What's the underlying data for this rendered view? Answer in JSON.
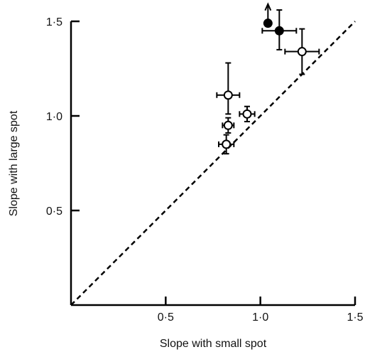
{
  "chart_data": {
    "type": "scatter",
    "xlabel": "Slope with small spot",
    "ylabel": "Slope with large spot",
    "xlim": [
      0,
      1.5
    ],
    "ylim": [
      0,
      1.5
    ],
    "x_ticks": [
      {
        "value": 0.5,
        "label": "0·5"
      },
      {
        "value": 1.0,
        "label": "1·0"
      },
      {
        "value": 1.5,
        "label": "1·5"
      }
    ],
    "y_ticks": [
      {
        "value": 0.5,
        "label": "0·5"
      },
      {
        "value": 1.0,
        "label": "1·0"
      },
      {
        "value": 1.5,
        "label": "1·5"
      }
    ],
    "reference_line": {
      "style": "dashed",
      "from": [
        0,
        0
      ],
      "to": [
        1.5,
        1.5
      ]
    },
    "grid": false,
    "points": [
      {
        "x": 1.04,
        "y": 1.49,
        "marker": "filled",
        "arrow_up": true
      },
      {
        "x": 1.1,
        "y": 1.45,
        "marker": "filled",
        "xerr": [
          0.09,
          0.09
        ],
        "yerr": [
          0.1,
          0.11
        ]
      },
      {
        "x": 1.22,
        "y": 1.34,
        "marker": "open",
        "xerr": [
          0.09,
          0.09
        ],
        "yerr": [
          0.12,
          0.12
        ]
      },
      {
        "x": 0.83,
        "y": 1.11,
        "marker": "crossed",
        "xerr": [
          0.06,
          0.06
        ],
        "yerr": [
          0.1,
          0.17
        ]
      },
      {
        "x": 0.93,
        "y": 1.01,
        "marker": "crossed",
        "xerr": [
          0.04,
          0.04
        ],
        "yerr": [
          0.04,
          0.04
        ]
      },
      {
        "x": 0.83,
        "y": 0.95,
        "marker": "open",
        "xerr": [
          0.03,
          0.03
        ],
        "yerr": [
          0.04,
          0.04
        ]
      },
      {
        "x": 0.82,
        "y": 0.85,
        "marker": "open",
        "xerr": [
          0.04,
          0.04
        ],
        "yerr": [
          0.05,
          0.05
        ]
      }
    ]
  }
}
